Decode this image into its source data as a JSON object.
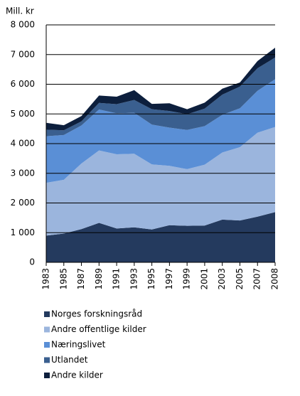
{
  "chart_data": {
    "type": "stacked_area",
    "y_label": "Mill. kr",
    "categories": [
      "1983",
      "1985",
      "1987",
      "1989",
      "1991",
      "1993",
      "1995",
      "1997",
      "1999",
      "2001",
      "2003",
      "2005",
      "2007",
      "2008"
    ],
    "series": [
      {
        "name": "Norges forskningsråd",
        "color": "#243a5e",
        "values": [
          900,
          970,
          1120,
          1330,
          1140,
          1180,
          1110,
          1250,
          1230,
          1240,
          1440,
          1410,
          1540,
          1690
        ]
      },
      {
        "name": "Andre offentlige kilder",
        "color": "#9bb5dd",
        "values": [
          1780,
          1810,
          2210,
          2440,
          2500,
          2480,
          2190,
          2000,
          1910,
          2050,
          2260,
          2470,
          2830,
          2870
        ]
      },
      {
        "name": "Næringslivet",
        "color": "#5a8fd6",
        "values": [
          1570,
          1510,
          1280,
          1380,
          1380,
          1380,
          1340,
          1290,
          1320,
          1300,
          1270,
          1310,
          1410,
          1610
        ]
      },
      {
        "name": "Utlandet",
        "color": "#3a5f8f",
        "values": [
          220,
          160,
          140,
          220,
          310,
          430,
          520,
          560,
          530,
          590,
          680,
          730,
          760,
          730
        ]
      },
      {
        "name": "Andre kilder",
        "color": "#0d1f3d",
        "values": [
          230,
          170,
          180,
          250,
          250,
          330,
          180,
          260,
          170,
          200,
          200,
          140,
          240,
          330
        ]
      }
    ],
    "ylim": [
      0,
      8000
    ],
    "yticks": [
      0,
      {
        "value": 1000,
        "label": "1 000"
      },
      {
        "value": 2000,
        "label": "2 000"
      },
      {
        "value": 3000,
        "label": "3 000"
      },
      {
        "value": 4000,
        "label": "4 000"
      },
      {
        "value": 5000,
        "label": "5 000"
      },
      {
        "value": 6000,
        "label": "6 000"
      },
      {
        "value": 7000,
        "label": "7 000"
      },
      {
        "value": 8000,
        "label": "8 000"
      }
    ],
    "grid": true
  }
}
